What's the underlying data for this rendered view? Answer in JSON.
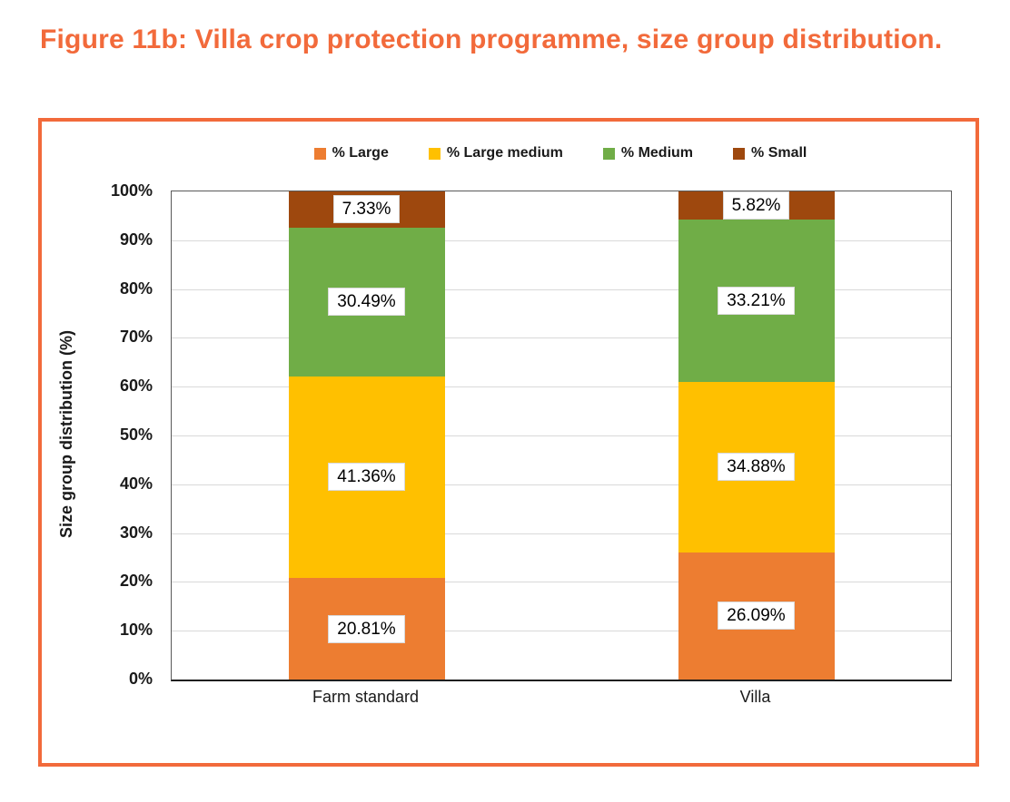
{
  "figure": {
    "title": "Figure 11b: Villa crop protection programme, size group distribution.",
    "accent_color": "#F26A3B"
  },
  "chart_data": {
    "type": "bar",
    "stacked": true,
    "title": "",
    "xlabel": "",
    "ylabel": "Size group distribution (%)",
    "ylim": [
      0,
      100
    ],
    "ytick_step": 10,
    "ytick_labels": [
      "0%",
      "10%",
      "20%",
      "30%",
      "40%",
      "50%",
      "60%",
      "70%",
      "80%",
      "90%",
      "100%"
    ],
    "grid": true,
    "gridline_color": "#D9D9D9",
    "legend_position": "top",
    "categories": [
      "Farm standard",
      "Villa"
    ],
    "series": [
      {
        "name": "% Large",
        "color": "#ED7D31",
        "values": [
          20.81,
          26.09
        ],
        "labels": [
          "20.81%",
          "26.09%"
        ]
      },
      {
        "name": "% Large medium",
        "color": "#FFC000",
        "values": [
          41.36,
          34.88
        ],
        "labels": [
          "41.36%",
          "34.88%"
        ]
      },
      {
        "name": "% Medium",
        "color": "#70AD47",
        "values": [
          30.49,
          33.21
        ],
        "labels": [
          "30.49%",
          "33.21%"
        ]
      },
      {
        "name": "% Small",
        "color": "#9E480E",
        "values": [
          7.33,
          5.82
        ],
        "labels": [
          "7.33%",
          "5.82%"
        ]
      }
    ]
  }
}
